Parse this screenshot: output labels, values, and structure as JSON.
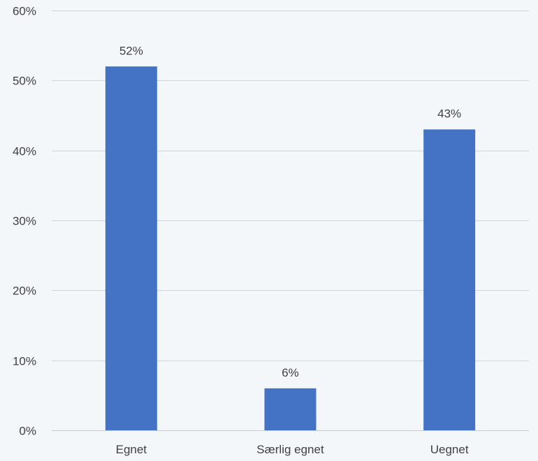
{
  "chart_data": {
    "type": "bar",
    "categories": [
      "Egnet",
      "Særlig egnet",
      "Uegnet"
    ],
    "values": [
      52,
      6,
      43
    ],
    "value_labels": [
      "52%",
      "6%",
      "43%"
    ],
    "yticks": [
      0,
      10,
      20,
      30,
      40,
      50,
      60
    ],
    "ytick_labels": [
      "0%",
      "10%",
      "20%",
      "30%",
      "40%",
      "50%",
      "60%"
    ],
    "ylim": [
      0,
      60
    ],
    "title": "",
    "xlabel": "",
    "ylabel": "",
    "grid": true,
    "bar_color": "#4472c4",
    "background_color": "#f3f7fa"
  }
}
